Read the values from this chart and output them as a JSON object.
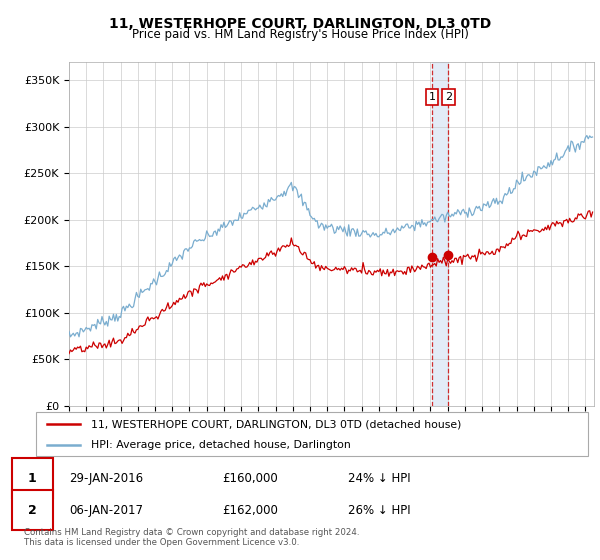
{
  "title": "11, WESTERHOPE COURT, DARLINGTON, DL3 0TD",
  "subtitle": "Price paid vs. HM Land Registry's House Price Index (HPI)",
  "ylabel_ticks": [
    "£0",
    "£50K",
    "£100K",
    "£150K",
    "£200K",
    "£250K",
    "£300K",
    "£350K"
  ],
  "ytick_vals": [
    0,
    50000,
    100000,
    150000,
    200000,
    250000,
    300000,
    350000
  ],
  "ylim": [
    0,
    370000
  ],
  "xlim_start": 1995.0,
  "xlim_end": 2025.5,
  "red_label": "11, WESTERHOPE COURT, DARLINGTON, DL3 0TD (detached house)",
  "blue_label": "HPI: Average price, detached house, Darlington",
  "transaction1_date": "29-JAN-2016",
  "transaction1_price": "£160,000",
  "transaction1_hpi": "24% ↓ HPI",
  "transaction2_date": "06-JAN-2017",
  "transaction2_price": "£162,000",
  "transaction2_hpi": "26% ↓ HPI",
  "vline1_x": 2016.08,
  "vline2_x": 2017.03,
  "dot1_x": 2016.08,
  "dot1_y": 160000,
  "dot2_x": 2017.03,
  "dot2_y": 162000,
  "footnote1": "Contains HM Land Registry data © Crown copyright and database right 2024.",
  "footnote2": "This data is licensed under the Open Government Licence v3.0.",
  "red_color": "#cc0000",
  "blue_color": "#7aadcf",
  "vline_color": "#cc0000",
  "highlight_color": "#dce8f5"
}
